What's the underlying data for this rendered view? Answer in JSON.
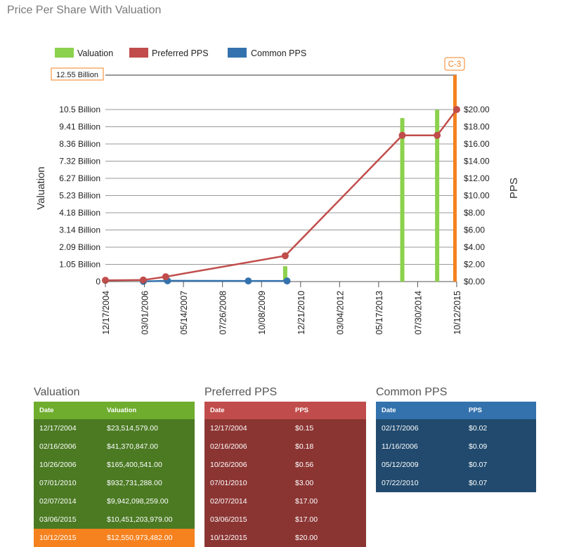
{
  "page_title": "Price Per Share With Valuation",
  "legend": {
    "valuation": "Valuation",
    "preferred": "Preferred PPS",
    "common": "Common PPS"
  },
  "colors": {
    "valuation": "#8cd14c",
    "preferred": "#c04d4b",
    "common": "#3472ad",
    "highlight": "#f5821f"
  },
  "chart_data": {
    "type": "bar+line",
    "title": "Price Per Share With Valuation",
    "ylabel_left": "Valuation",
    "ylabel_right": "PPS",
    "y_left_ticks": [
      "0",
      "1.05 Billion",
      "2.09 Billion",
      "3.14 Billion",
      "4.18 Billion",
      "5.23 Billion",
      "6.27 Billion",
      "7.32 Billion",
      "8.36 Billion",
      "9.41 Billion",
      "10.5 Billion"
    ],
    "y_left_max_label": "12.55 Billion",
    "y_left_range": [
      0,
      12550973482
    ],
    "y_right_ticks": [
      "$0.00",
      "$2.00",
      "$4.00",
      "$6.00",
      "$8.00",
      "$10.00",
      "$12.00",
      "$14.00",
      "$16.00",
      "$18.00",
      "$20.00"
    ],
    "y_right_range": [
      0,
      20
    ],
    "x_ticks": [
      "12/17/2004",
      "03/01/2006",
      "05/14/2007",
      "07/26/2008",
      "10/08/2009",
      "12/21/2010",
      "03/04/2012",
      "05/17/2013",
      "07/30/2014",
      "10/12/2015"
    ],
    "x_range": [
      "12/17/2004",
      "10/12/2015"
    ],
    "annotation": "C-3",
    "valuation": [
      {
        "date": "12/17/2004",
        "value": 23514579
      },
      {
        "date": "02/16/2006",
        "value": 41370847
      },
      {
        "date": "10/26/2006",
        "value": 165400541
      },
      {
        "date": "07/01/2010",
        "value": 932731288
      },
      {
        "date": "02/07/2014",
        "value": 9942098259
      },
      {
        "date": "03/06/2015",
        "value": 10451203979
      },
      {
        "date": "10/12/2015",
        "value": 12550973482,
        "highlight": true
      }
    ],
    "preferred": [
      {
        "date": "12/17/2004",
        "value": 0.15
      },
      {
        "date": "02/16/2006",
        "value": 0.18
      },
      {
        "date": "10/26/2006",
        "value": 0.56
      },
      {
        "date": "07/01/2010",
        "value": 3.0
      },
      {
        "date": "02/07/2014",
        "value": 17.0
      },
      {
        "date": "03/06/2015",
        "value": 17.0
      },
      {
        "date": "10/12/2015",
        "value": 20.0
      }
    ],
    "common": [
      {
        "date": "02/17/2006",
        "value": 0.02
      },
      {
        "date": "11/16/2006",
        "value": 0.09
      },
      {
        "date": "05/12/2009",
        "value": 0.07
      },
      {
        "date": "07/22/2010",
        "value": 0.07
      }
    ]
  },
  "tables": {
    "valuation": {
      "title": "Valuation",
      "headers": [
        "Date",
        "Valuation"
      ],
      "rows": [
        [
          "12/17/2004",
          "$23,514,579.00"
        ],
        [
          "02/16/2006",
          "$41,370,847.00"
        ],
        [
          "10/26/2006",
          "$165,400,541.00"
        ],
        [
          "07/01/2010",
          "$932,731,288.00"
        ],
        [
          "02/07/2014",
          "$9,942,098,259.00"
        ],
        [
          "03/06/2015",
          "$10,451,203,979.00"
        ],
        [
          "10/12/2015",
          "$12,550,973,482.00"
        ]
      ]
    },
    "preferred": {
      "title": "Preferred PPS",
      "headers": [
        "Date",
        "PPS"
      ],
      "rows": [
        [
          "12/17/2004",
          "$0.15"
        ],
        [
          "02/16/2006",
          "$0.18"
        ],
        [
          "10/26/2006",
          "$0.56"
        ],
        [
          "07/01/2010",
          "$3.00"
        ],
        [
          "02/07/2014",
          "$17.00"
        ],
        [
          "03/06/2015",
          "$17.00"
        ],
        [
          "10/12/2015",
          "$20.00"
        ]
      ]
    },
    "common": {
      "title": "Common PPS",
      "headers": [
        "Date",
        "PPS"
      ],
      "rows": [
        [
          "02/17/2006",
          "$0.02"
        ],
        [
          "11/16/2006",
          "$0.09"
        ],
        [
          "05/12/2009",
          "$0.07"
        ],
        [
          "07/22/2010",
          "$0.07"
        ]
      ]
    }
  }
}
